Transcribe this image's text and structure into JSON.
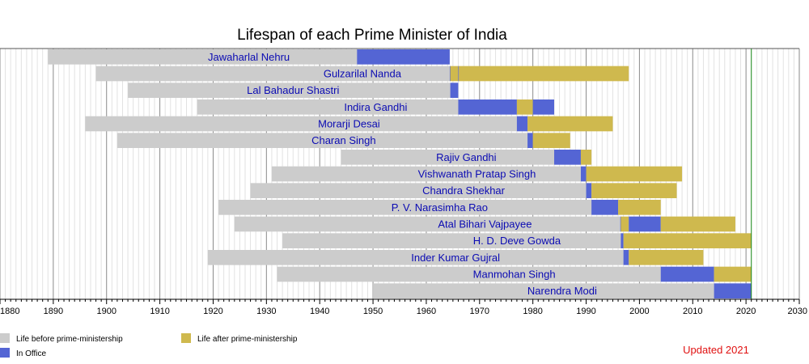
{
  "chart_data": {
    "type": "bar",
    "title": "Lifespan of each Prime Minister of India",
    "xlim": [
      1880,
      2030
    ],
    "x_ticks": [
      1880,
      1890,
      1900,
      1910,
      1920,
      1930,
      1940,
      1950,
      1960,
      1970,
      1980,
      1990,
      2000,
      2010,
      2020,
      2030
    ],
    "x_tick_labels": [
      "1880",
      "1890",
      "1900",
      "1910",
      "1920",
      "1930",
      "1940",
      "1950",
      "1960",
      "1970",
      "1980",
      "1990",
      "2000",
      "2010",
      "2020",
      "2030"
    ],
    "current_year": 2021,
    "grid": true,
    "legend_position": "bottom-left",
    "legend": [
      {
        "key": "before",
        "label": "Life before prime-ministership",
        "color": "#cccccc"
      },
      {
        "key": "office",
        "label": "In Office",
        "color": "#5465d4"
      },
      {
        "key": "after",
        "label": "Life after prime-ministership",
        "color": "#cfb94e"
      }
    ],
    "colors": {
      "before": "#cccccc",
      "office": "#5465d4",
      "after": "#cfb94e",
      "label": "#0b0bb3",
      "current_year_line": "#1a8a1a",
      "updated": "#e01010"
    },
    "ministers": [
      {
        "name": "Jawaharlal Nehru",
        "segments": [
          {
            "kind": "before",
            "start": 1889,
            "end": 1947
          },
          {
            "kind": "office",
            "start": 1947,
            "end": 1964.4
          }
        ]
      },
      {
        "name": "Gulzarilal Nanda",
        "segments": [
          {
            "kind": "before",
            "start": 1898,
            "end": 1964.4
          },
          {
            "kind": "office",
            "start": 1964.4,
            "end": 1964.5
          },
          {
            "kind": "after",
            "start": 1964.5,
            "end": 1966
          },
          {
            "kind": "office",
            "start": 1966,
            "end": 1966.1
          },
          {
            "kind": "after",
            "start": 1966.1,
            "end": 1998
          }
        ]
      },
      {
        "name": "Lal Bahadur Shastri",
        "segments": [
          {
            "kind": "before",
            "start": 1904,
            "end": 1964.5
          },
          {
            "kind": "office",
            "start": 1964.5,
            "end": 1966
          }
        ]
      },
      {
        "name": "Indira Gandhi",
        "segments": [
          {
            "kind": "before",
            "start": 1917,
            "end": 1966
          },
          {
            "kind": "office",
            "start": 1966,
            "end": 1977
          },
          {
            "kind": "after",
            "start": 1977,
            "end": 1980
          },
          {
            "kind": "office",
            "start": 1980,
            "end": 1984
          }
        ]
      },
      {
        "name": "Morarji Desai",
        "segments": [
          {
            "kind": "before",
            "start": 1896,
            "end": 1977
          },
          {
            "kind": "office",
            "start": 1977,
            "end": 1979
          },
          {
            "kind": "after",
            "start": 1979,
            "end": 1995
          }
        ]
      },
      {
        "name": "Charan Singh",
        "segments": [
          {
            "kind": "before",
            "start": 1902,
            "end": 1979
          },
          {
            "kind": "office",
            "start": 1979,
            "end": 1980
          },
          {
            "kind": "after",
            "start": 1980,
            "end": 1987
          }
        ]
      },
      {
        "name": "Rajiv Gandhi",
        "segments": [
          {
            "kind": "before",
            "start": 1944,
            "end": 1984
          },
          {
            "kind": "office",
            "start": 1984,
            "end": 1989
          },
          {
            "kind": "after",
            "start": 1989,
            "end": 1991
          }
        ]
      },
      {
        "name": "Vishwanath Pratap Singh",
        "segments": [
          {
            "kind": "before",
            "start": 1931,
            "end": 1989
          },
          {
            "kind": "office",
            "start": 1989,
            "end": 1990
          },
          {
            "kind": "after",
            "start": 1990,
            "end": 2008
          }
        ]
      },
      {
        "name": "Chandra Shekhar",
        "segments": [
          {
            "kind": "before",
            "start": 1927,
            "end": 1990
          },
          {
            "kind": "office",
            "start": 1990,
            "end": 1991
          },
          {
            "kind": "after",
            "start": 1991,
            "end": 2007
          }
        ]
      },
      {
        "name": "P. V. Narasimha Rao",
        "segments": [
          {
            "kind": "before",
            "start": 1921,
            "end": 1991
          },
          {
            "kind": "office",
            "start": 1991,
            "end": 1996
          },
          {
            "kind": "after",
            "start": 1996,
            "end": 2004
          }
        ]
      },
      {
        "name": "Atal Bihari Vajpayee",
        "segments": [
          {
            "kind": "before",
            "start": 1924,
            "end": 1996.4
          },
          {
            "kind": "office",
            "start": 1996.4,
            "end": 1996.5
          },
          {
            "kind": "after",
            "start": 1996.5,
            "end": 1998
          },
          {
            "kind": "office",
            "start": 1998,
            "end": 2004
          },
          {
            "kind": "after",
            "start": 2004,
            "end": 2018
          }
        ]
      },
      {
        "name": "H. D. Deve Gowda",
        "segments": [
          {
            "kind": "before",
            "start": 1933,
            "end": 1996.5
          },
          {
            "kind": "office",
            "start": 1996.5,
            "end": 1997
          },
          {
            "kind": "after",
            "start": 1997,
            "end": 2021
          }
        ]
      },
      {
        "name": "Inder Kumar Gujral",
        "segments": [
          {
            "kind": "before",
            "start": 1919,
            "end": 1997
          },
          {
            "kind": "office",
            "start": 1997,
            "end": 1998
          },
          {
            "kind": "after",
            "start": 1998,
            "end": 2012
          }
        ]
      },
      {
        "name": "Manmohan Singh",
        "segments": [
          {
            "kind": "before",
            "start": 1932,
            "end": 2004
          },
          {
            "kind": "office",
            "start": 2004,
            "end": 2014
          },
          {
            "kind": "after",
            "start": 2014,
            "end": 2021
          }
        ]
      },
      {
        "name": "Narendra Modi",
        "segments": [
          {
            "kind": "before",
            "start": 1950,
            "end": 2014
          },
          {
            "kind": "office",
            "start": 2014,
            "end": 2021
          }
        ]
      }
    ],
    "updated_note": "Updated 2021"
  }
}
